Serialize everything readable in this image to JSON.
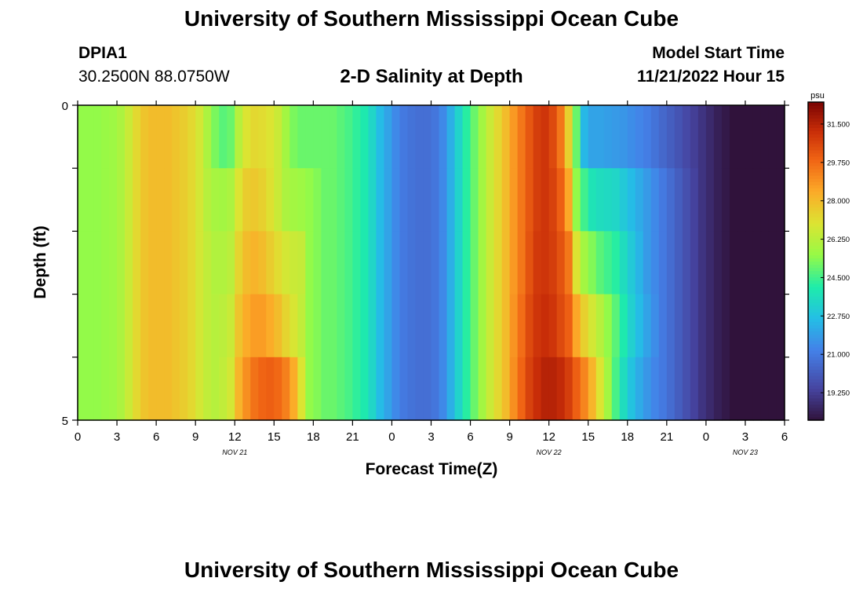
{
  "header": {
    "title": "University of Southern Mississippi Ocean Cube",
    "station_id": "DPIA1",
    "station_coords": "30.2500N  88.0750W",
    "plot_title": "2-D Salinity at Depth",
    "model_start_label": "Model Start Time",
    "model_start_value": "11/21/2022 Hour 15"
  },
  "footer": {
    "title": "University of Southern Mississippi Ocean Cube"
  },
  "chart_data": {
    "type": "heatmap",
    "title": "2-D Salinity at Depth",
    "xlabel": "Forecast Time(Z)",
    "ylabel": "Depth (ft)",
    "x_tick_labels": [
      "0",
      "3",
      "6",
      "9",
      "12",
      "15",
      "18",
      "21",
      "0",
      "3",
      "6",
      "9",
      "12",
      "15",
      "18",
      "21",
      "0",
      "3",
      "6"
    ],
    "y_tick_labels": [
      "0",
      "5"
    ],
    "ylim": [
      0,
      5
    ],
    "date_labels": [
      {
        "text": "NOV 21",
        "at_tick": 4
      },
      {
        "text": "NOV 22",
        "at_tick": 12
      },
      {
        "text": "NOV 23",
        "at_tick": 17
      }
    ],
    "hours": 54,
    "depth_levels": 5,
    "colorbar": {
      "unit": "psu",
      "min": 18.0,
      "max": 32.5,
      "tick_values": [
        31.5,
        29.75,
        28.0,
        26.25,
        24.5,
        22.75,
        21.0,
        19.25
      ],
      "tick_labels": [
        "31.500",
        "29.750",
        "28.000",
        "26.250",
        "24.500",
        "22.750",
        "21.000",
        "19.250"
      ]
    },
    "salinity_psu": [
      [
        25.5,
        25.5,
        25.5,
        25.6,
        25.7,
        26.0,
        26.6,
        27.3,
        27.8,
        28.0,
        28.0,
        28.0,
        27.8,
        27.6,
        27.3,
        26.8,
        26.0,
        25.2,
        24.8,
        25.0,
        26.2,
        27.0,
        27.3,
        27.2,
        27.0,
        26.6,
        25.8,
        25.2,
        25.0,
        25.0,
        25.0,
        25.0,
        25.0,
        24.8,
        24.6,
        24.3,
        24.0,
        23.4,
        22.6,
        22.0,
        21.4,
        21.0,
        20.8,
        20.7,
        20.7,
        20.9,
        21.4,
        22.3,
        23.3,
        24.2,
        25.0,
        25.8,
        26.6,
        27.3,
        28.0,
        28.8,
        29.5,
        30.2,
        30.8,
        31.0,
        30.5,
        29.5,
        27.5,
        25.0,
        22.5,
        22.0,
        22.0,
        21.9,
        21.8,
        21.7,
        21.5,
        21.3,
        21.1,
        20.8,
        20.5,
        20.2,
        19.9,
        19.6,
        19.3,
        19.0,
        18.7,
        18.4,
        18.2,
        18.0,
        17.9,
        17.8,
        17.8,
        17.7,
        17.6,
        17.5
      ],
      [
        25.5,
        25.5,
        25.5,
        25.6,
        25.7,
        26.0,
        26.6,
        27.3,
        27.8,
        28.0,
        28.0,
        28.0,
        27.8,
        27.6,
        27.3,
        26.8,
        26.2,
        25.9,
        25.8,
        26.0,
        27.0,
        27.6,
        27.7,
        27.5,
        27.1,
        26.6,
        26.0,
        25.8,
        25.7,
        25.5,
        25.3,
        25.0,
        25.0,
        24.8,
        24.6,
        24.3,
        24.0,
        23.4,
        22.6,
        22.0,
        21.4,
        21.0,
        20.8,
        20.7,
        20.7,
        20.9,
        21.4,
        22.3,
        23.3,
        24.2,
        25.0,
        25.8,
        26.6,
        27.3,
        28.0,
        28.8,
        29.5,
        30.2,
        30.8,
        31.0,
        30.7,
        30.0,
        28.5,
        25.5,
        24.5,
        23.8,
        23.6,
        23.5,
        23.4,
        23.0,
        22.6,
        22.2,
        21.8,
        21.4,
        21.0,
        20.6,
        20.2,
        19.8,
        19.4,
        19.0,
        18.7,
        18.4,
        18.2,
        18.0,
        17.9,
        17.8,
        17.8,
        17.7,
        17.6,
        17.5
      ],
      [
        25.5,
        25.5,
        25.5,
        25.6,
        25.7,
        26.0,
        26.6,
        27.3,
        27.8,
        28.0,
        28.0,
        28.0,
        27.8,
        27.6,
        27.3,
        26.8,
        26.4,
        26.1,
        26.1,
        26.3,
        27.4,
        28.0,
        28.2,
        28.0,
        27.6,
        27.2,
        26.8,
        26.6,
        26.5,
        25.5,
        25.3,
        25.0,
        25.0,
        24.8,
        24.6,
        24.3,
        24.0,
        23.4,
        22.6,
        22.0,
        21.4,
        21.0,
        20.8,
        20.7,
        20.7,
        20.9,
        21.4,
        22.3,
        23.3,
        24.2,
        25.0,
        25.8,
        26.6,
        27.3,
        28.0,
        28.8,
        29.5,
        30.3,
        30.9,
        31.0,
        30.8,
        30.3,
        29.5,
        27.0,
        25.8,
        25.3,
        24.8,
        24.5,
        24.2,
        23.6,
        23.0,
        22.4,
        21.8,
        21.4,
        21.0,
        20.6,
        20.2,
        19.8,
        19.4,
        19.0,
        18.7,
        18.4,
        18.2,
        18.0,
        17.9,
        17.8,
        17.8,
        17.7,
        17.6,
        17.5
      ],
      [
        25.5,
        25.5,
        25.5,
        25.6,
        25.7,
        26.0,
        26.6,
        27.3,
        27.8,
        28.0,
        28.0,
        28.0,
        27.8,
        27.6,
        27.3,
        26.8,
        26.4,
        26.2,
        26.3,
        26.6,
        27.8,
        28.4,
        28.7,
        28.7,
        28.4,
        28.0,
        27.4,
        26.9,
        26.4,
        25.5,
        25.3,
        25.0,
        25.0,
        24.8,
        24.6,
        24.3,
        24.0,
        23.4,
        22.6,
        22.0,
        21.4,
        21.0,
        20.8,
        20.7,
        20.7,
        20.9,
        21.4,
        22.3,
        23.3,
        24.2,
        25.0,
        25.8,
        26.6,
        27.3,
        28.0,
        28.9,
        29.7,
        30.5,
        31.0,
        31.2,
        31.0,
        30.5,
        30.0,
        28.5,
        27.5,
        26.8,
        26.2,
        25.5,
        24.8,
        24.0,
        23.2,
        22.6,
        22.0,
        21.5,
        21.0,
        20.6,
        20.2,
        19.8,
        19.4,
        19.0,
        18.7,
        18.4,
        18.2,
        18.0,
        17.9,
        17.8,
        17.8,
        17.7,
        17.6,
        17.5
      ],
      [
        25.5,
        25.5,
        25.5,
        25.6,
        25.7,
        26.0,
        26.6,
        27.3,
        27.8,
        28.0,
        28.0,
        28.0,
        27.8,
        27.6,
        27.3,
        26.8,
        26.4,
        26.2,
        26.4,
        26.8,
        28.2,
        29.0,
        29.6,
        29.9,
        30.0,
        29.8,
        29.3,
        28.4,
        27.0,
        25.5,
        25.3,
        25.0,
        25.0,
        24.8,
        24.6,
        24.3,
        24.0,
        23.4,
        22.6,
        22.0,
        21.4,
        21.0,
        20.8,
        20.7,
        20.7,
        20.9,
        21.4,
        22.3,
        23.3,
        24.2,
        25.0,
        25.8,
        26.6,
        27.3,
        28.0,
        29.0,
        29.9,
        30.7,
        31.2,
        31.5,
        31.5,
        31.3,
        30.8,
        30.0,
        29.2,
        28.2,
        27.0,
        25.8,
        24.6,
        23.6,
        22.8,
        22.2,
        21.7,
        21.3,
        21.0,
        20.6,
        20.2,
        19.8,
        19.4,
        19.0,
        18.7,
        18.4,
        18.2,
        18.0,
        17.9,
        17.8,
        17.8,
        17.7,
        17.6,
        17.5
      ]
    ]
  }
}
